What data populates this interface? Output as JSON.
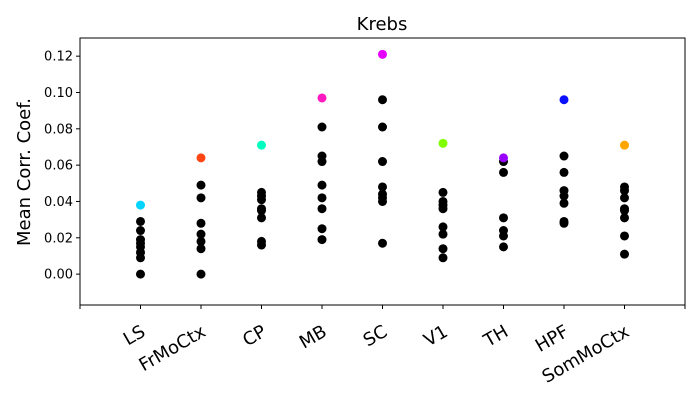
{
  "chart_data": {
    "type": "scatter",
    "title": "Krebs",
    "xlabel": "",
    "ylabel": "Mean Corr. Coef.",
    "categories": [
      "LS",
      "FrMoCtx",
      "CP",
      "MB",
      "SC",
      "V1",
      "TH",
      "HPF",
      "SomMoCtx"
    ],
    "ylim": [
      -0.017,
      0.13
    ],
    "yticks": [
      0.0,
      0.02,
      0.04,
      0.06,
      0.08,
      0.1,
      0.12
    ],
    "ytick_labels": [
      "0.00",
      "0.02",
      "0.04",
      "0.06",
      "0.08",
      "0.10",
      "0.12"
    ],
    "grid": false,
    "highlight_colors": [
      "#00d4ff",
      "#ff4513",
      "#00ffbf",
      "#ff19c0",
      "#e600ff",
      "#7fff00",
      "#9a00ff",
      "#0a10ff",
      "#ffa500"
    ],
    "base_color": "#000000",
    "highlight": [
      0.038,
      0.064,
      0.071,
      0.097,
      0.121,
      0.072,
      0.064,
      0.096,
      0.071
    ],
    "points": [
      [
        0.029,
        0.024,
        0.019,
        0.017,
        0.015,
        0.012,
        0.009,
        0.0
      ],
      [
        0.049,
        0.042,
        0.028,
        0.022,
        0.018,
        0.014,
        0.0
      ],
      [
        0.045,
        0.043,
        0.041,
        0.036,
        0.035,
        0.031,
        0.018,
        0.016
      ],
      [
        0.081,
        0.065,
        0.062,
        0.049,
        0.042,
        0.036,
        0.025,
        0.019
      ],
      [
        0.096,
        0.081,
        0.062,
        0.048,
        0.044,
        0.042,
        0.04,
        0.017
      ],
      [
        0.045,
        0.04,
        0.038,
        0.036,
        0.026,
        0.022,
        0.014,
        0.009
      ],
      [
        0.062,
        0.056,
        0.031,
        0.024,
        0.021,
        0.015
      ],
      [
        0.065,
        0.056,
        0.046,
        0.043,
        0.039,
        0.029,
        0.028
      ],
      [
        0.048,
        0.046,
        0.042,
        0.036,
        0.035,
        0.031,
        0.021,
        0.011
      ]
    ]
  }
}
